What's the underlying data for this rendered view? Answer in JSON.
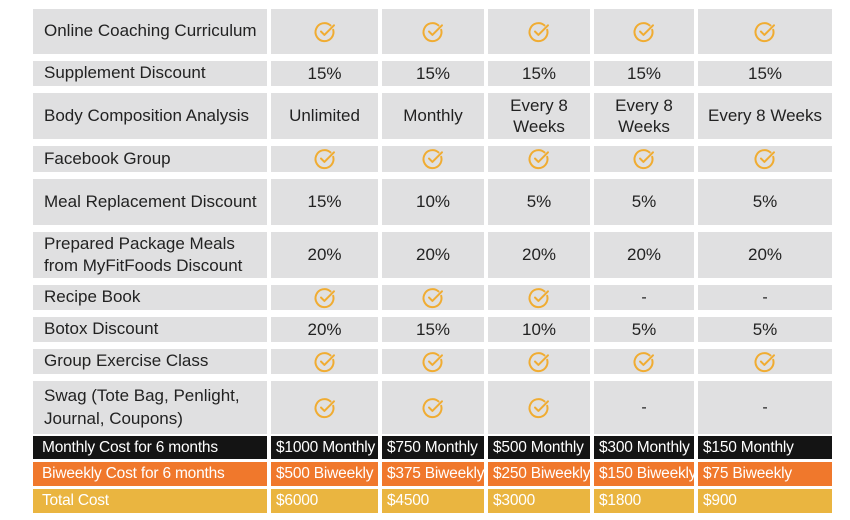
{
  "colors": {
    "cell_bg": "#e0e0e1",
    "check": "#f0ac32",
    "monthly_row": "#141414",
    "biweekly_row": "#f0782c",
    "total_row": "#eab540"
  },
  "icons": {
    "included": "check-circle-icon"
  },
  "features": [
    {
      "label": "Online Coaching Curriculum",
      "values": [
        "check",
        "check",
        "check",
        "check",
        "check"
      ]
    },
    {
      "label": "Supplement Discount",
      "values": [
        "15%",
        "15%",
        "15%",
        "15%",
        "15%"
      ]
    },
    {
      "label": "Body Composition Analysis",
      "values": [
        "Unlimited",
        "Monthly",
        "Every 8 Weeks",
        "Every 8 Weeks",
        "Every 8 Weeks"
      ]
    },
    {
      "label": "Facebook Group",
      "values": [
        "check",
        "check",
        "check",
        "check",
        "check"
      ]
    },
    {
      "label": "Meal Replacement Discount",
      "values": [
        "15%",
        "10%",
        "5%",
        "5%",
        "5%"
      ]
    },
    {
      "label": "Prepared Package Meals from MyFitFoods Discount",
      "values": [
        "20%",
        "20%",
        "20%",
        "20%",
        "20%"
      ]
    },
    {
      "label": "Recipe Book",
      "values": [
        "check",
        "check",
        "check",
        "-",
        "-"
      ]
    },
    {
      "label": "Botox Discount",
      "values": [
        "20%",
        "15%",
        "10%",
        "5%",
        "5%"
      ]
    },
    {
      "label": "Group Exercise Class",
      "values": [
        "check",
        "check",
        "check",
        "check",
        "check"
      ]
    },
    {
      "label": "Swag (Tote Bag, Penlight, Journal, Coupons)",
      "values": [
        "check",
        "check",
        "check",
        "-",
        "-"
      ]
    }
  ],
  "pricing": {
    "monthly": {
      "label": "Monthly Cost for 6 months",
      "values": [
        "$1000 Monthly",
        "$750 Monthly",
        "$500 Monthly",
        "$300 Monthly",
        "$150 Monthly"
      ]
    },
    "biweekly": {
      "label": "Biweekly Cost for 6 months",
      "values": [
        "$500 Biweekly",
        "$375 Biweekly",
        "$250 Biweekly",
        "$150 Biweekly",
        "$75 Biweekly"
      ]
    },
    "total": {
      "label": "Total Cost",
      "values": [
        "$6000",
        "$4500",
        "$3000",
        "$1800",
        "$900"
      ]
    }
  }
}
